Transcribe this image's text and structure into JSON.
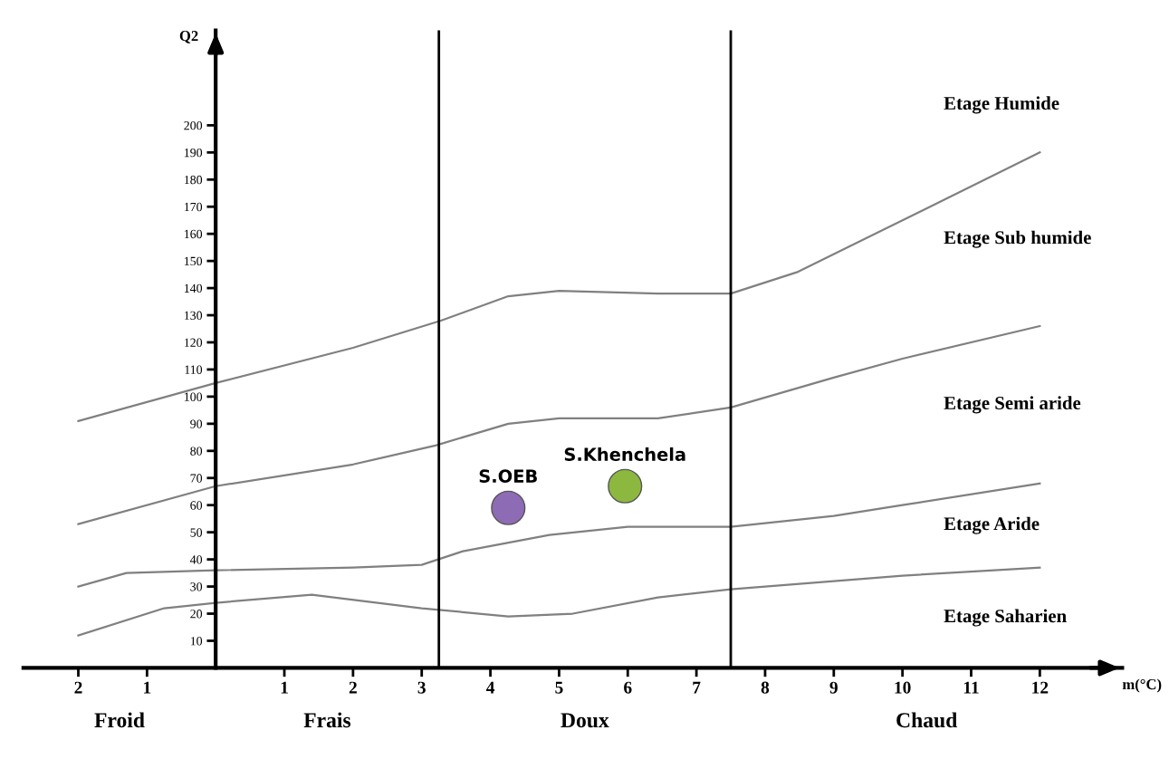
{
  "chart_data": {
    "type": "line",
    "xlabel": "m(°C)",
    "ylabel": "Q2",
    "xlim": [
      -2.8,
      13.2
    ],
    "ylim": [
      0,
      235
    ],
    "xticks": [
      {
        "value": -2,
        "label": "2"
      },
      {
        "value": -1,
        "label": "1"
      },
      1,
      2,
      3,
      4,
      5,
      6,
      7,
      8,
      9,
      10,
      11,
      12
    ],
    "yticks": [
      10,
      20,
      30,
      40,
      50,
      60,
      70,
      80,
      90,
      100,
      110,
      120,
      130,
      140,
      150,
      160,
      170,
      180,
      190,
      200
    ],
    "grid": false,
    "legend": false,
    "series": [
      {
        "color": "#808080",
        "x": [
          -2,
          0,
          2,
          3.28,
          4.26,
          5,
          6.44,
          7.5,
          8.48,
          10,
          12
        ],
        "values": [
          91,
          105,
          118,
          128,
          137,
          139,
          138,
          138,
          146,
          165,
          190
        ]
      },
      {
        "color": "#808080",
        "x": [
          -2,
          0,
          2,
          3.2,
          4.26,
          5,
          6.44,
          7.5,
          9,
          10,
          12
        ],
        "values": [
          53,
          67,
          75,
          82,
          90,
          92,
          92,
          96,
          107,
          114,
          126
        ]
      },
      {
        "color": "#808080",
        "x": [
          -2,
          -1.3,
          0,
          2,
          3,
          3.6,
          4.86,
          6,
          7.5,
          9,
          10,
          12
        ],
        "values": [
          30,
          35,
          36,
          37,
          38,
          43,
          49,
          52,
          52,
          56,
          60,
          68
        ]
      },
      {
        "color": "#808080",
        "x": [
          -2,
          -0.75,
          0,
          1.4,
          3,
          4.26,
          5.2,
          6.44,
          7.5,
          10,
          12
        ],
        "values": [
          12,
          22,
          24,
          27,
          22,
          19,
          20,
          26,
          29,
          34,
          37
        ]
      },
      {
        "type": "scatter",
        "name": "S.OEB",
        "color": "#8e6bb5",
        "x": [
          4.26
        ],
        "values": [
          59
        ]
      },
      {
        "type": "scatter",
        "name": "S.Khenchela",
        "color": "#8cb840",
        "x": [
          5.96
        ],
        "values": [
          67
        ]
      }
    ],
    "ref_lines": [
      {
        "axis": "x",
        "value": 3.25,
        "color": "#000000"
      },
      {
        "axis": "x",
        "value": 7.5,
        "color": "#000000"
      }
    ],
    "annotations": [
      "Etage Humide",
      "Etage Sub humide",
      "Etage Semi aride",
      "Etage Aride",
      "Etage Saharien",
      "Froid",
      "Frais",
      "Doux",
      "Chaud"
    ]
  }
}
